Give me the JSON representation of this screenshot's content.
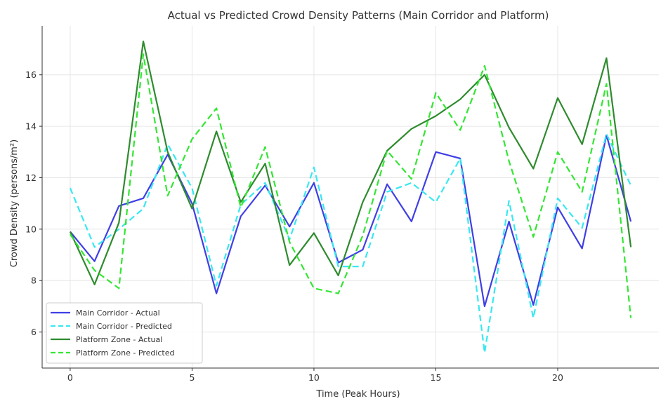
{
  "chart_data": {
    "type": "line",
    "title": "Actual vs Predicted Crowd Density Patterns (Main Corridor and Platform)",
    "xlabel": "Time (Peak Hours)",
    "ylabel": "Crowd Density (persons/m²)",
    "xlim": [
      -1.15,
      24.15
    ],
    "ylim": [
      4.6,
      17.9
    ],
    "xticks": [
      0,
      5,
      10,
      15,
      20
    ],
    "yticks": [
      6,
      8,
      10,
      12,
      14,
      16
    ],
    "grid": true,
    "legend_position": "lower-left",
    "x": [
      0,
      1,
      2,
      3,
      4,
      5,
      6,
      7,
      8,
      9,
      10,
      11,
      12,
      13,
      14,
      15,
      16,
      17,
      18,
      19,
      20,
      21,
      22,
      23
    ],
    "series": [
      {
        "name": "Main Corridor - Actual",
        "color": "#3f3fe6",
        "dash": "solid",
        "values": [
          9.9,
          8.75,
          10.9,
          11.2,
          12.9,
          11.0,
          7.5,
          10.5,
          11.7,
          10.1,
          11.8,
          8.7,
          9.2,
          11.75,
          10.3,
          13.0,
          12.75,
          7.0,
          10.3,
          7.05,
          10.85,
          9.25,
          13.65,
          10.3
        ]
      },
      {
        "name": "Main Corridor - Predicted",
        "color": "#38e8f0",
        "dash": "dashed",
        "values": [
          11.6,
          9.3,
          10.0,
          10.8,
          13.3,
          11.6,
          7.8,
          10.95,
          11.8,
          9.6,
          12.4,
          8.55,
          8.55,
          11.45,
          11.8,
          11.05,
          12.75,
          5.2,
          11.1,
          6.55,
          11.2,
          10.05,
          13.7,
          11.7
        ]
      },
      {
        "name": "Platform Zone - Actual",
        "color": "#2e8b2e",
        "dash": "solid",
        "values": [
          9.9,
          7.85,
          10.25,
          17.3,
          13.0,
          10.8,
          13.8,
          11.05,
          12.55,
          8.6,
          9.85,
          8.2,
          11.05,
          13.05,
          13.9,
          14.4,
          15.05,
          16.0,
          13.95,
          12.35,
          15.1,
          13.3,
          16.65,
          9.3
        ]
      },
      {
        "name": "Platform Zone - Predicted",
        "color": "#33e633",
        "dash": "dashed",
        "values": [
          9.8,
          8.4,
          7.7,
          16.8,
          11.3,
          13.5,
          14.7,
          10.85,
          13.2,
          9.5,
          7.7,
          7.5,
          9.75,
          13.05,
          11.95,
          15.3,
          13.85,
          16.35,
          12.65,
          9.7,
          13.0,
          11.45,
          15.65,
          6.55
        ]
      }
    ]
  }
}
